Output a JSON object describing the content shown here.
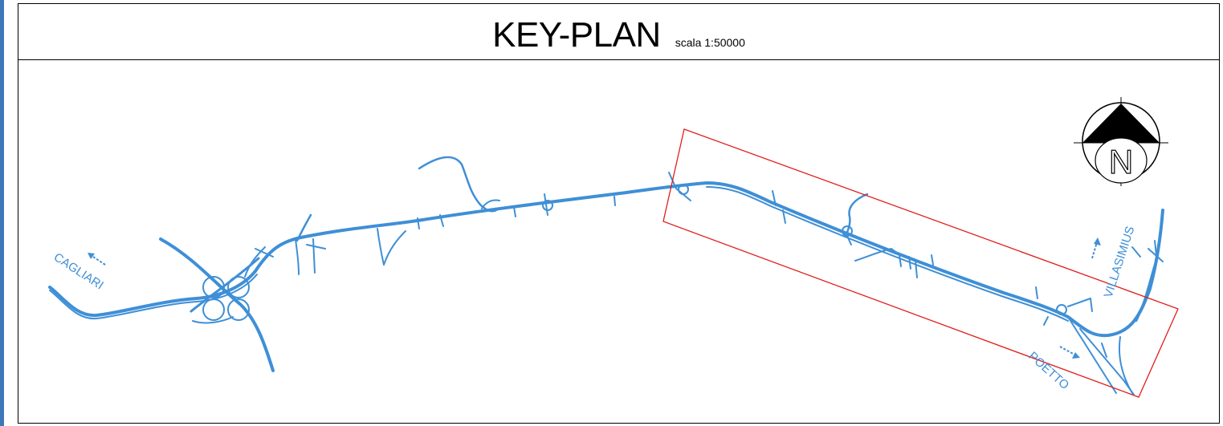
{
  "title": "KEY-PLAN",
  "scale": "scala 1:50000",
  "compass_letter": "N",
  "places": {
    "cagliari": "CAGLIARI",
    "villasimius": "VILLASIMIUS",
    "poetto": "POETTO"
  },
  "colors": {
    "road": "#3f8fd6",
    "highlight": "#e0201b",
    "frame": "#000000",
    "edge_bar": "#3d78b8"
  },
  "icons": {
    "north": "north-arrow-icon",
    "direction": "dotted-arrow-icon"
  }
}
